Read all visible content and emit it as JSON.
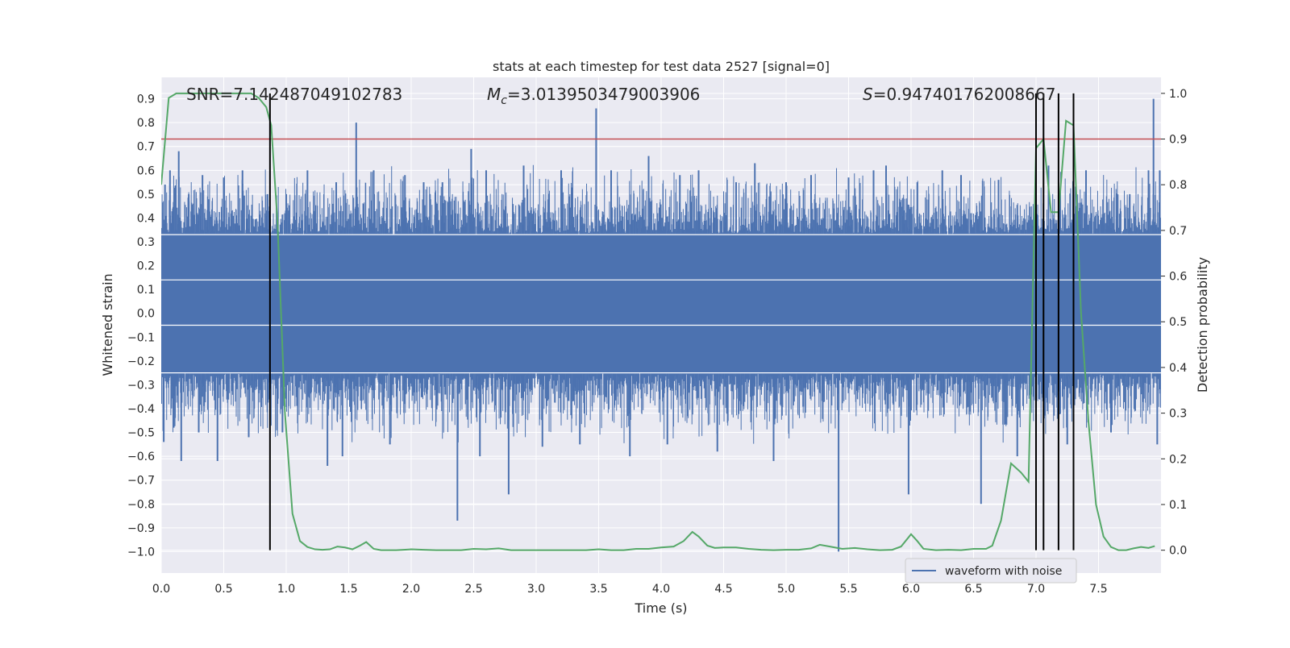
{
  "chart_data": {
    "type": "line",
    "title": "stats at each timestep for test data 2527 [signal=0]",
    "xlabel": "Time (s)",
    "ylabel": "Whitened strain",
    "y2label": "Detection probability",
    "xlim": [
      0.0,
      8.0
    ],
    "ylim": [
      -1.09,
      0.99
    ],
    "y2lim": [
      -0.05,
      1.035
    ],
    "xticks": [
      0.0,
      0.5,
      1.0,
      1.5,
      2.0,
      2.5,
      3.0,
      3.5,
      4.0,
      4.5,
      5.0,
      5.5,
      6.0,
      6.5,
      7.0,
      7.5
    ],
    "yticks": [
      -1.0,
      -0.9,
      -0.8,
      -0.7,
      -0.6,
      -0.5,
      -0.4,
      -0.3,
      -0.2,
      -0.1,
      0.0,
      0.1,
      0.2,
      0.3,
      0.4,
      0.5,
      0.6,
      0.7,
      0.8,
      0.9
    ],
    "y2ticks": [
      0.0,
      0.1,
      0.2,
      0.3,
      0.4,
      0.5,
      0.6,
      0.7,
      0.8,
      0.9,
      1.0
    ],
    "annotations": {
      "snr": "SNR=7.142487049102783",
      "mc_symbol": "M",
      "mc_sub": "c",
      "mc_value": "=3.0139503479003906",
      "s_symbol": "S",
      "s_value": "=0.947401762008667"
    },
    "legend": {
      "label": "waveform with noise",
      "position": "lower right"
    },
    "series": [
      {
        "name": "waveform with noise",
        "axis": "left",
        "color": "#4c72b0",
        "noise_band": [
          -0.25,
          0.33
        ],
        "spikes": [
          [
            0.02,
            -0.54
          ],
          [
            0.03,
            0.54
          ],
          [
            0.07,
            0.6
          ],
          [
            0.1,
            -0.48
          ],
          [
            0.14,
            0.68
          ],
          [
            0.16,
            -0.62
          ],
          [
            0.22,
            0.5
          ],
          [
            0.3,
            -0.5
          ],
          [
            0.33,
            0.58
          ],
          [
            0.45,
            -0.62
          ],
          [
            0.5,
            0.57
          ],
          [
            0.65,
            0.6
          ],
          [
            0.7,
            -0.52
          ],
          [
            0.85,
            0.5
          ],
          [
            0.97,
            -0.5
          ],
          [
            1.0,
            0.5
          ],
          [
            1.17,
            0.6
          ],
          [
            1.33,
            -0.64
          ],
          [
            1.4,
            0.55
          ],
          [
            1.45,
            -0.6
          ],
          [
            1.56,
            0.8
          ],
          [
            1.7,
            0.6
          ],
          [
            1.83,
            -0.55
          ],
          [
            1.95,
            0.58
          ],
          [
            2.1,
            0.55
          ],
          [
            2.25,
            0.55
          ],
          [
            2.37,
            -0.87
          ],
          [
            2.48,
            0.69
          ],
          [
            2.55,
            -0.6
          ],
          [
            2.6,
            0.6
          ],
          [
            2.78,
            -0.76
          ],
          [
            2.9,
            0.62
          ],
          [
            3.05,
            -0.56
          ],
          [
            3.2,
            0.6
          ],
          [
            3.35,
            -0.55
          ],
          [
            3.48,
            0.86
          ],
          [
            3.6,
            0.6
          ],
          [
            3.75,
            -0.6
          ],
          [
            3.9,
            0.66
          ],
          [
            4.05,
            -0.55
          ],
          [
            4.15,
            0.58
          ],
          [
            4.3,
            0.6
          ],
          [
            4.45,
            -0.58
          ],
          [
            4.6,
            0.55
          ],
          [
            4.75,
            0.63
          ],
          [
            4.9,
            -0.62
          ],
          [
            5.0,
            0.55
          ],
          [
            5.2,
            0.58
          ],
          [
            5.42,
            -1.0
          ],
          [
            5.5,
            0.57
          ],
          [
            5.7,
            0.6
          ],
          [
            5.8,
            0.62
          ],
          [
            5.98,
            -0.76
          ],
          [
            6.05,
            0.55
          ],
          [
            6.25,
            0.6
          ],
          [
            6.4,
            0.58
          ],
          [
            6.56,
            -0.8
          ],
          [
            6.7,
            0.56
          ],
          [
            6.85,
            -0.6
          ],
          [
            7.1,
            0.62
          ],
          [
            7.25,
            -0.55
          ],
          [
            7.4,
            0.6
          ],
          [
            7.6,
            -0.5
          ],
          [
            7.75,
            0.5
          ],
          [
            7.9,
            0.6
          ],
          [
            7.94,
            0.9
          ],
          [
            7.97,
            -0.55
          ],
          [
            7.99,
            0.6
          ]
        ]
      },
      {
        "name": "",
        "axis": "right",
        "color": "#55a868",
        "x": [
          0.0,
          0.06,
          0.12,
          0.18,
          0.24,
          0.3,
          0.36,
          0.42,
          0.48,
          0.54,
          0.6,
          0.66,
          0.72,
          0.78,
          0.84,
          0.88,
          0.93,
          0.99,
          1.05,
          1.11,
          1.17,
          1.23,
          1.29,
          1.35,
          1.41,
          1.47,
          1.53,
          1.59,
          1.64,
          1.7,
          1.76,
          1.82,
          1.88,
          1.94,
          2.0,
          2.1,
          2.2,
          2.3,
          2.4,
          2.5,
          2.6,
          2.7,
          2.8,
          2.9,
          3.0,
          3.1,
          3.2,
          3.3,
          3.4,
          3.5,
          3.6,
          3.7,
          3.8,
          3.9,
          4.0,
          4.1,
          4.18,
          4.25,
          4.3,
          4.37,
          4.43,
          4.5,
          4.6,
          4.7,
          4.8,
          4.9,
          5.0,
          5.1,
          5.2,
          5.27,
          5.35,
          5.45,
          5.55,
          5.65,
          5.75,
          5.85,
          5.92,
          6.0,
          6.05,
          6.1,
          6.2,
          6.3,
          6.4,
          6.5,
          6.6,
          6.65,
          6.72,
          6.8,
          6.88,
          6.94,
          7.0,
          7.06,
          7.12,
          7.18,
          7.24,
          7.3,
          7.36,
          7.42,
          7.48,
          7.54,
          7.6,
          7.66,
          7.72,
          7.78,
          7.84,
          7.9,
          7.95
        ],
        "y": [
          0.8,
          0.99,
          1.0,
          1.0,
          1.0,
          1.0,
          1.0,
          1.0,
          1.0,
          1.0,
          1.0,
          1.0,
          1.0,
          0.99,
          0.97,
          0.93,
          0.72,
          0.3,
          0.08,
          0.02,
          0.007,
          0.002,
          0.001,
          0.002,
          0.008,
          0.006,
          0.002,
          0.01,
          0.018,
          0.003,
          0.0,
          0.0,
          0.0,
          0.001,
          0.002,
          0.001,
          0.0,
          0.0,
          0.0,
          0.003,
          0.002,
          0.004,
          0.0,
          0.0,
          0.0,
          0.0,
          0.0,
          0.0,
          0.0,
          0.002,
          0.0,
          0.0,
          0.003,
          0.003,
          0.006,
          0.008,
          0.02,
          0.04,
          0.03,
          0.01,
          0.005,
          0.006,
          0.006,
          0.003,
          0.001,
          0.0,
          0.001,
          0.001,
          0.004,
          0.012,
          0.008,
          0.003,
          0.005,
          0.002,
          0.0,
          0.001,
          0.008,
          0.035,
          0.02,
          0.003,
          0.0,
          0.001,
          0.0,
          0.003,
          0.003,
          0.01,
          0.065,
          0.19,
          0.17,
          0.15,
          0.88,
          0.9,
          0.74,
          0.74,
          0.94,
          0.93,
          0.52,
          0.28,
          0.1,
          0.03,
          0.007,
          0.0,
          0.0,
          0.004,
          0.007,
          0.005,
          0.009
        ]
      }
    ],
    "threshold_line": {
      "axis": "right",
      "value": 0.9,
      "color": "#c44e52"
    },
    "vertical_lines": [
      0.87,
      7.0,
      7.06,
      7.18,
      7.3
    ],
    "background_color": "#eaeaf2"
  }
}
